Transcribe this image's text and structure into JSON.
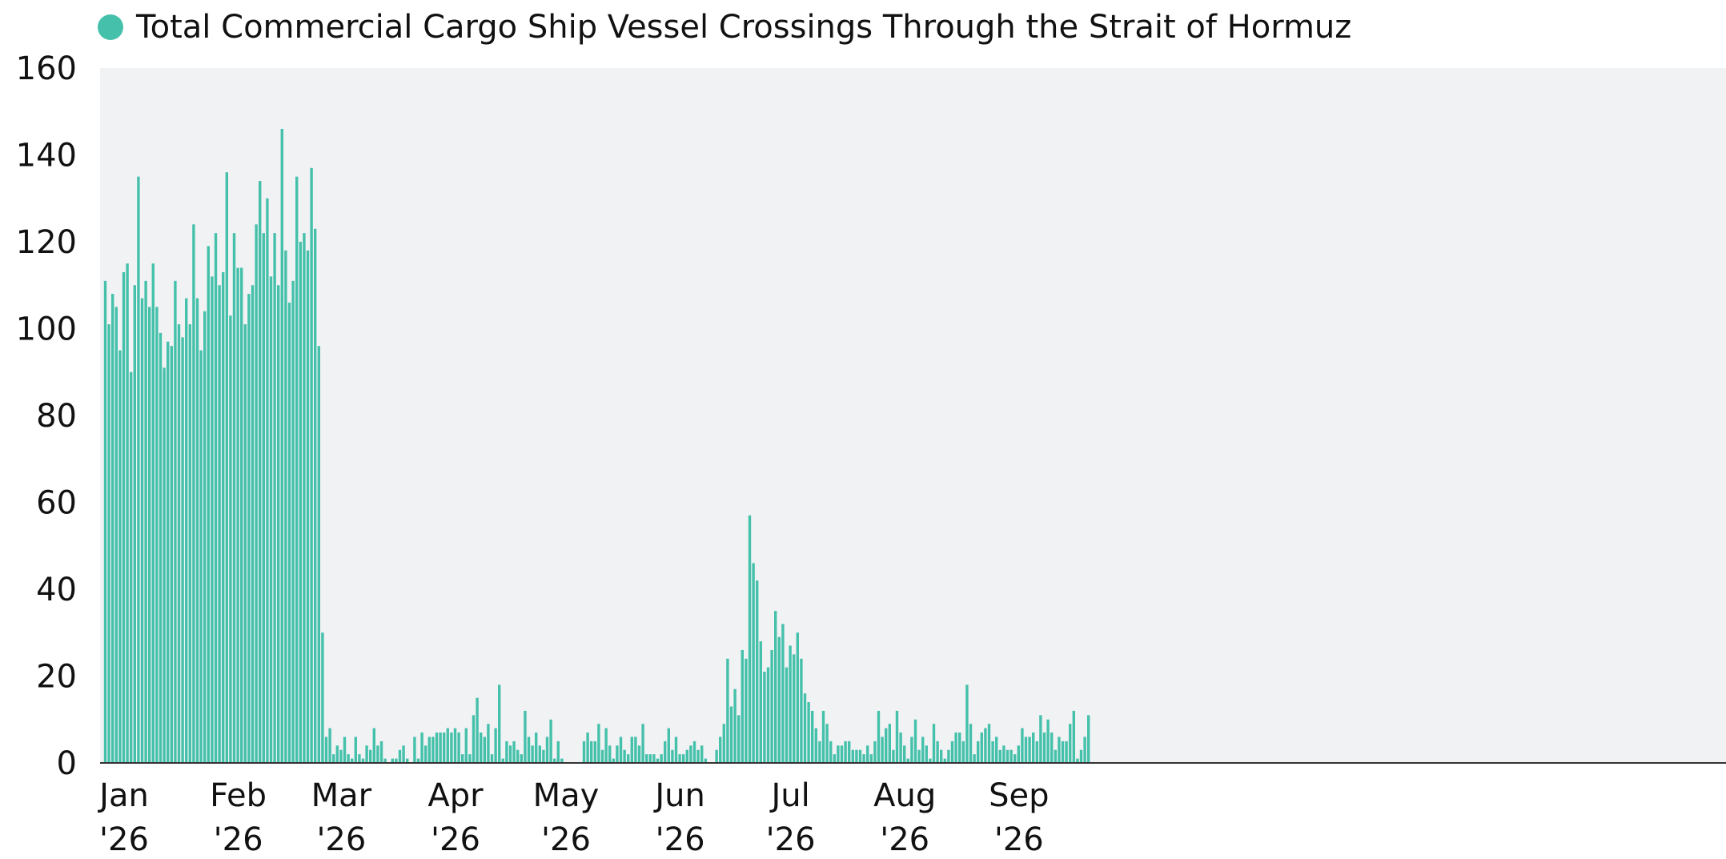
{
  "chart_data": {
    "type": "bar",
    "title": "",
    "xlabel": "",
    "ylabel": "",
    "ylim": [
      0,
      160
    ],
    "yticks": [
      0,
      20,
      40,
      60,
      80,
      100,
      120,
      140,
      160
    ],
    "grid": false,
    "legend_position": "top-left",
    "colors": {
      "bar": "#45c1ab",
      "plot_background": "#f1f2f3",
      "axis": "#333333"
    },
    "x_start": "2026-01-01",
    "x_end": "2026-09-22",
    "x_tick_labels": [
      {
        "date": "2026-01-01",
        "month": "Jan",
        "year": "'26"
      },
      {
        "date": "2026-02-01",
        "month": "Feb",
        "year": "'26"
      },
      {
        "date": "2026-03-01",
        "month": "Mar",
        "year": "'26"
      },
      {
        "date": "2026-04-01",
        "month": "Apr",
        "year": "'26"
      },
      {
        "date": "2026-05-01",
        "month": "May",
        "year": "'26"
      },
      {
        "date": "2026-06-01",
        "month": "Jun",
        "year": "'26"
      },
      {
        "date": "2026-07-01",
        "month": "Jul",
        "year": "'26"
      },
      {
        "date": "2026-08-01",
        "month": "Aug",
        "year": "'26"
      },
      {
        "date": "2026-09-01",
        "month": "Sep",
        "year": "'26"
      }
    ],
    "series": [
      {
        "name": "Total Commercial Cargo Ship Vessel Crossings Through the Strait of Hormuz",
        "values": [
          111,
          101,
          108,
          105,
          95,
          113,
          115,
          90,
          110,
          135,
          107,
          111,
          105,
          115,
          105,
          99,
          91,
          97,
          96,
          111,
          101,
          98,
          107,
          101,
          124,
          107,
          95,
          104,
          119,
          112,
          122,
          110,
          113,
          136,
          103,
          122,
          114,
          114,
          101,
          108,
          110,
          124,
          134,
          122,
          130,
          112,
          122,
          110,
          146,
          118,
          106,
          111,
          135,
          120,
          122,
          118,
          137,
          123,
          96,
          30,
          6,
          8,
          2,
          4,
          3,
          6,
          2,
          1,
          6,
          2,
          1,
          4,
          3,
          8,
          4,
          5,
          1,
          0,
          1,
          1,
          3,
          4,
          1,
          0,
          6,
          1,
          7,
          4,
          6,
          6,
          7,
          7,
          7,
          8,
          7,
          8,
          7,
          2,
          8,
          2,
          11,
          15,
          7,
          6,
          9,
          2,
          8,
          18,
          1,
          5,
          4,
          5,
          3,
          2,
          12,
          6,
          4,
          7,
          4,
          3,
          6,
          10,
          1,
          5,
          1,
          0,
          0,
          0,
          0,
          0,
          5,
          7,
          5,
          5,
          9,
          3,
          8,
          4,
          1,
          4,
          6,
          3,
          2,
          6,
          6,
          4,
          9,
          2,
          2,
          2,
          1,
          2,
          5,
          8,
          3,
          6,
          2,
          2,
          3,
          4,
          5,
          3,
          4,
          1,
          0,
          0,
          3,
          6,
          9,
          24,
          13,
          17,
          11,
          26,
          24,
          57,
          46,
          42,
          28,
          21,
          22,
          26,
          35,
          29,
          32,
          22,
          27,
          25,
          30,
          24,
          16,
          14,
          12,
          8,
          5,
          12,
          9,
          5,
          2,
          4,
          4,
          5,
          5,
          3,
          3,
          3,
          2,
          4,
          2,
          5,
          12,
          6,
          8,
          9,
          3,
          12,
          7,
          4,
          1,
          6,
          10,
          3,
          6,
          4,
          1,
          9,
          5,
          3,
          1,
          3,
          5,
          7,
          7,
          5,
          18,
          9,
          2,
          5,
          7,
          8,
          9,
          5,
          6,
          3,
          4,
          3,
          3,
          2,
          4,
          8,
          6,
          6,
          7,
          5,
          11,
          7,
          10,
          7,
          3,
          6,
          5,
          5,
          9,
          12,
          1,
          3,
          6,
          11
        ]
      }
    ]
  }
}
